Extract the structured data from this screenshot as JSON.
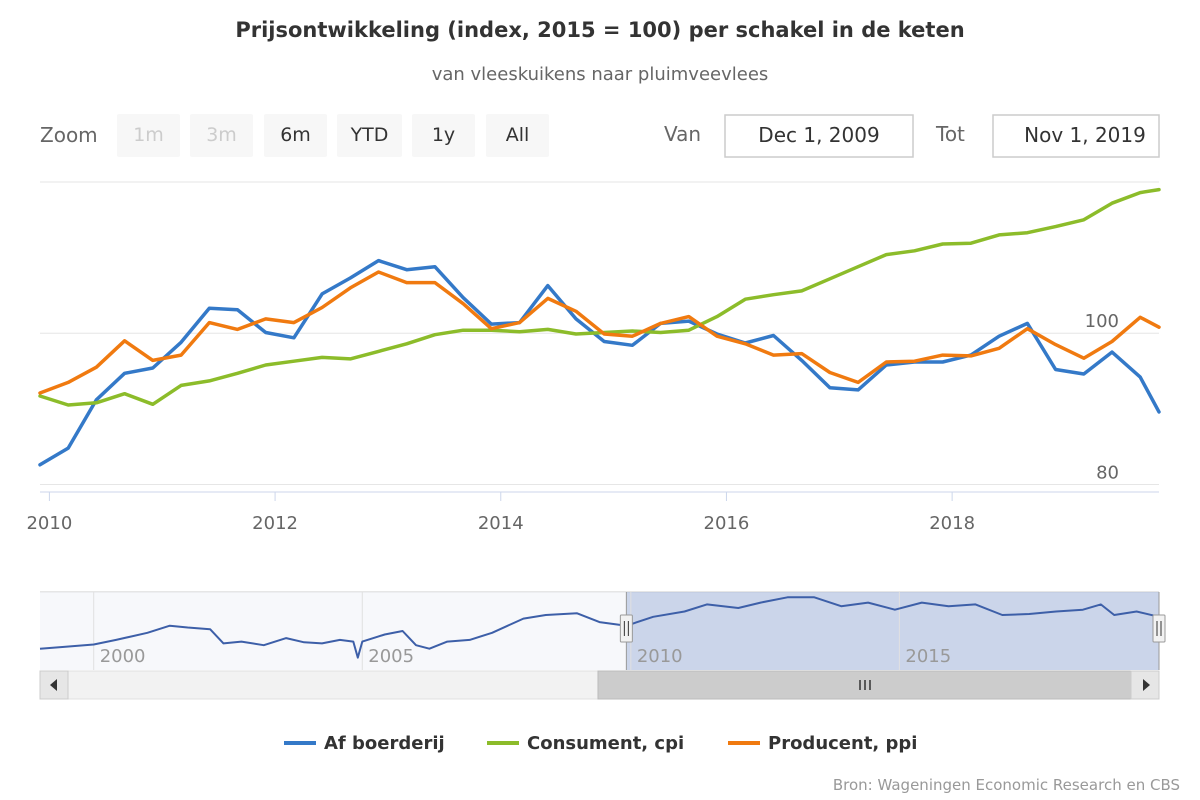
{
  "chart_data": {
    "type": "line",
    "title": "Prijsontwikkeling (index, 2015 = 100) per schakel in de keten",
    "subtitle": "van vleeskuikens naar pluimveevlees",
    "x_axis": {
      "ticks": [
        "2010",
        "2012",
        "2014",
        "2016",
        "2018"
      ],
      "range": [
        "2009-12-01",
        "2019-11-01"
      ]
    },
    "y_axis": {
      "ticks": [
        80,
        100
      ],
      "range": [
        79,
        120
      ]
    },
    "grid": true,
    "legend_position": "bottom",
    "x": [
      "2009-12",
      "2010-03",
      "2010-06",
      "2010-09",
      "2010-12",
      "2011-03",
      "2011-06",
      "2011-09",
      "2011-12",
      "2012-03",
      "2012-06",
      "2012-09",
      "2012-12",
      "2013-03",
      "2013-06",
      "2013-09",
      "2013-12",
      "2014-03",
      "2014-06",
      "2014-09",
      "2014-12",
      "2015-03",
      "2015-06",
      "2015-09",
      "2015-12",
      "2016-03",
      "2016-06",
      "2016-09",
      "2016-12",
      "2017-03",
      "2017-06",
      "2017-09",
      "2017-12",
      "2018-03",
      "2018-06",
      "2018-09",
      "2018-12",
      "2019-03",
      "2019-06",
      "2019-09",
      "2019-11"
    ],
    "series": [
      {
        "name": "Af boerderij",
        "color": "#3479c8",
        "values": [
          82.6,
          84.8,
          91.2,
          94.7,
          95.4,
          98.8,
          103.3,
          103.1,
          100.1,
          99.4,
          105.2,
          107.3,
          109.6,
          108.4,
          108.8,
          104.7,
          101.2,
          101.4,
          106.3,
          101.9,
          98.9,
          98.4,
          101.3,
          101.6,
          99.9,
          98.7,
          99.7,
          96.4,
          92.8,
          92.5,
          95.8,
          96.2,
          96.2,
          97.1,
          99.6,
          101.3,
          95.2,
          94.6,
          97.5,
          94.2,
          89.6
        ]
      },
      {
        "name": "Consument, cpi",
        "color": "#8cbc2a",
        "values": [
          91.7,
          90.5,
          90.8,
          92.0,
          90.6,
          93.1,
          93.7,
          94.7,
          95.8,
          96.3,
          96.8,
          96.6,
          97.6,
          98.6,
          99.8,
          100.4,
          100.4,
          100.2,
          100.5,
          99.9,
          100.1,
          100.3,
          100.1,
          100.4,
          102.2,
          104.5,
          105.1,
          105.6,
          107.2,
          108.8,
          110.4,
          110.9,
          111.8,
          111.9,
          113.0,
          113.3,
          114.1,
          115.0,
          117.2,
          118.6,
          119.0
        ]
      },
      {
        "name": "Producent, ppi",
        "color": "#f07a10",
        "values": [
          92.1,
          93.5,
          95.5,
          99.0,
          96.4,
          97.1,
          101.4,
          100.5,
          101.9,
          101.4,
          103.4,
          106.0,
          108.1,
          106.7,
          106.7,
          103.9,
          100.6,
          101.4,
          104.6,
          102.9,
          99.9,
          99.6,
          101.3,
          102.2,
          99.6,
          98.6,
          97.1,
          97.3,
          94.8,
          93.5,
          96.2,
          96.3,
          97.1,
          97.0,
          98.0,
          100.6,
          98.5,
          96.7,
          98.9,
          102.1,
          100.8
        ]
      }
    ]
  },
  "range_selector": {
    "zoom_label": "Zoom",
    "buttons": [
      {
        "label": "1m",
        "enabled": false
      },
      {
        "label": "3m",
        "enabled": false
      },
      {
        "label": "6m",
        "enabled": true
      },
      {
        "label": "YTD",
        "enabled": true
      },
      {
        "label": "1y",
        "enabled": true
      },
      {
        "label": "All",
        "enabled": true
      }
    ],
    "from_label": "Van",
    "from_value": "Dec 1, 2009",
    "to_label": "Tot",
    "to_value": "Nov 1, 2019"
  },
  "navigator": {
    "ticks": [
      "2000",
      "2005",
      "2010",
      "2015"
    ],
    "range": [
      "1999-01-01",
      "2019-11-01"
    ],
    "selected": [
      "2009-12-01",
      "2019-11-01"
    ],
    "series": [
      {
        "x": "1999-01",
        "y": 84.0
      },
      {
        "x": "1999-06",
        "y": 84.5
      },
      {
        "x": "2000-01",
        "y": 85.2
      },
      {
        "x": "2000-06",
        "y": 86.5
      },
      {
        "x": "2001-01",
        "y": 88.5
      },
      {
        "x": "2001-06",
        "y": 90.5
      },
      {
        "x": "2001-10",
        "y": 90.0
      },
      {
        "x": "2002-03",
        "y": 89.5
      },
      {
        "x": "2002-06",
        "y": 85.5
      },
      {
        "x": "2002-10",
        "y": 86.0
      },
      {
        "x": "2003-03",
        "y": 85.0
      },
      {
        "x": "2003-08",
        "y": 87.0
      },
      {
        "x": "2003-12",
        "y": 85.8
      },
      {
        "x": "2004-04",
        "y": 85.5
      },
      {
        "x": "2004-08",
        "y": 86.5
      },
      {
        "x": "2004-11",
        "y": 86.0
      },
      {
        "x": "2004-12",
        "y": 81.5
      },
      {
        "x": "2005-01",
        "y": 86.0
      },
      {
        "x": "2005-06",
        "y": 88.0
      },
      {
        "x": "2005-10",
        "y": 89.0
      },
      {
        "x": "2006-01",
        "y": 85.0
      },
      {
        "x": "2006-04",
        "y": 84.0
      },
      {
        "x": "2006-08",
        "y": 86.0
      },
      {
        "x": "2007-01",
        "y": 86.5
      },
      {
        "x": "2007-06",
        "y": 88.5
      },
      {
        "x": "2008-01",
        "y": 92.5
      },
      {
        "x": "2008-06",
        "y": 93.5
      },
      {
        "x": "2009-01",
        "y": 94.0
      },
      {
        "x": "2009-06",
        "y": 91.5
      },
      {
        "x": "2009-12",
        "y": 90.5
      },
      {
        "x": "2010-06",
        "y": 93.0
      },
      {
        "x": "2011-01",
        "y": 94.5
      },
      {
        "x": "2011-06",
        "y": 96.5
      },
      {
        "x": "2012-01",
        "y": 95.5
      },
      {
        "x": "2012-06",
        "y": 97.0
      },
      {
        "x": "2012-12",
        "y": 98.5
      },
      {
        "x": "2013-06",
        "y": 98.5
      },
      {
        "x": "2013-12",
        "y": 96.0
      },
      {
        "x": "2014-06",
        "y": 97.0
      },
      {
        "x": "2014-12",
        "y": 95.0
      },
      {
        "x": "2015-06",
        "y": 97.0
      },
      {
        "x": "2015-12",
        "y": 96.0
      },
      {
        "x": "2016-06",
        "y": 96.5
      },
      {
        "x": "2016-12",
        "y": 93.5
      },
      {
        "x": "2017-06",
        "y": 93.8
      },
      {
        "x": "2017-12",
        "y": 94.5
      },
      {
        "x": "2018-06",
        "y": 95.0
      },
      {
        "x": "2018-10",
        "y": 96.5
      },
      {
        "x": "2019-01",
        "y": 93.5
      },
      {
        "x": "2019-06",
        "y": 94.5
      },
      {
        "x": "2019-11",
        "y": 93.0
      }
    ]
  },
  "credits": "Bron: Wageningen Economic Research en CBS"
}
